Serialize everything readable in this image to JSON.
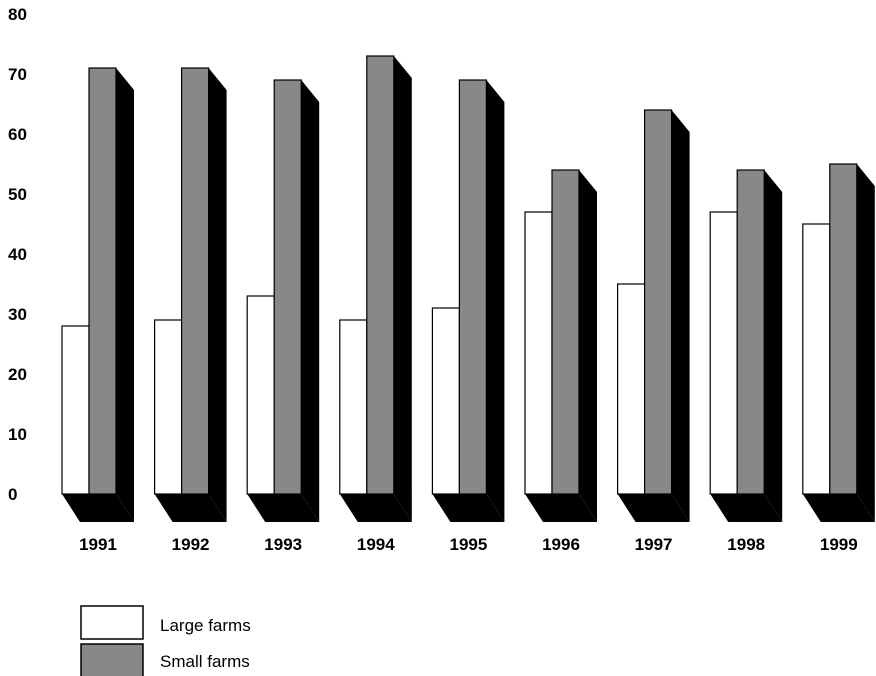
{
  "chart_data": {
    "type": "bar",
    "categories": [
      "1991",
      "1992",
      "1993",
      "1994",
      "1995",
      "1996",
      "1997",
      "1998",
      "1999"
    ],
    "series": [
      {
        "name": "Large farms",
        "values": [
          28,
          29,
          33,
          29,
          31,
          47,
          35,
          47,
          45
        ]
      },
      {
        "name": "Small farms",
        "values": [
          71,
          71,
          69,
          73,
          69,
          54,
          64,
          54,
          55
        ]
      }
    ],
    "title": "",
    "xlabel": "",
    "ylabel": "",
    "ylim": [
      0,
      80
    ],
    "yticks": [
      "0",
      "10",
      "20",
      "30",
      "40",
      "50",
      "60",
      "70",
      "80"
    ],
    "grid": false,
    "legend": "bottom-left",
    "colors": {
      "Large farms": "#ffffff",
      "Small farms": "#888888",
      "depth": "#000000"
    }
  }
}
